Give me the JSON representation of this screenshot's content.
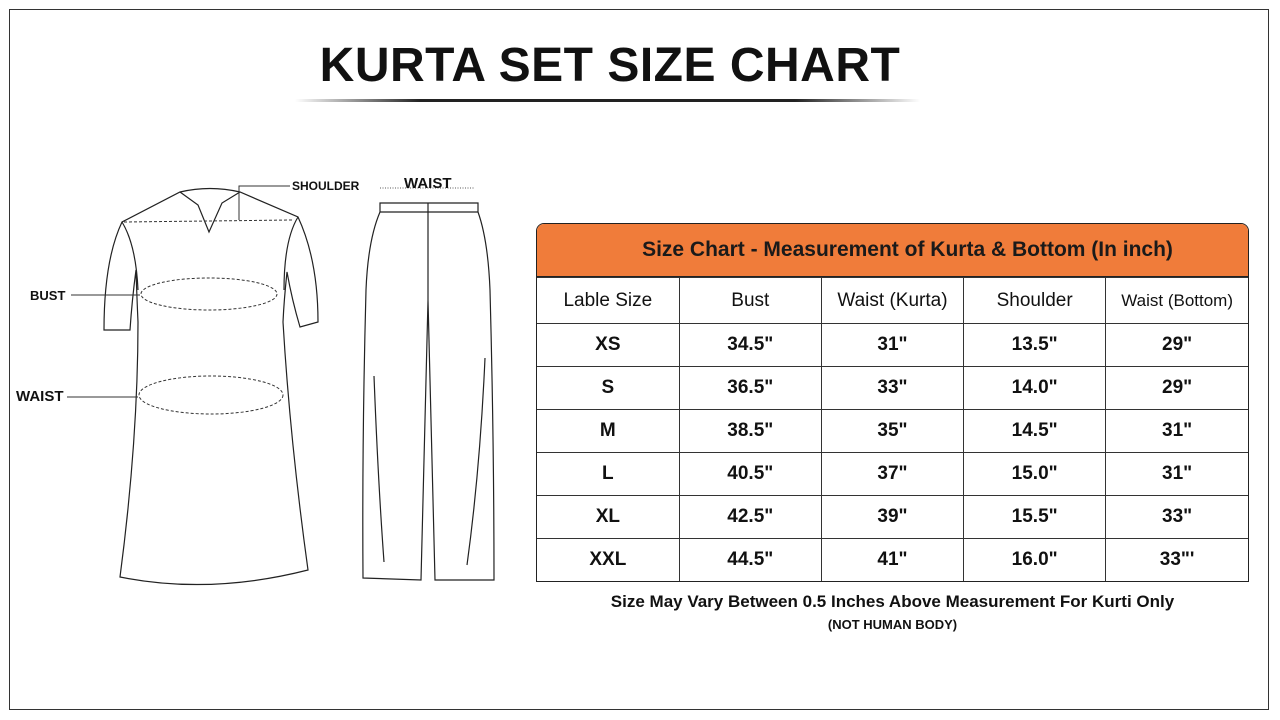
{
  "title": "KURTA SET SIZE CHART",
  "diagram": {
    "kurta_labels": {
      "shoulder": "SHOULDER",
      "bust": "BUST",
      "waist": "WAIST"
    },
    "bottom_labels": {
      "waist": "WAIST"
    }
  },
  "table": {
    "heading": "Size Chart - Measurement of  Kurta & Bottom  (In inch)",
    "header_color": "#f07c3a",
    "columns": [
      "Lable Size",
      "Bust",
      "Waist (Kurta)",
      "Shoulder",
      "Waist (Bottom)"
    ],
    "rows": [
      [
        "XS",
        "34.5\"",
        "31\"",
        "13.5\"",
        "29\""
      ],
      [
        "S",
        "36.5\"",
        "33\"",
        "14.0\"",
        "29\""
      ],
      [
        "M",
        "38.5\"",
        "35\"",
        "14.5\"",
        "31\""
      ],
      [
        "L",
        "40.5\"",
        "37\"",
        "15.0\"",
        "31\""
      ],
      [
        "XL",
        "42.5\"",
        "39\"",
        "15.5\"",
        "33\""
      ],
      [
        "XXL",
        "44.5\"",
        "41\"",
        "16.0\"",
        "33\"'"
      ]
    ]
  },
  "note": "Size May Vary Between 0.5 Inches Above Measurement For Kurti Only",
  "note_sub": "(NOT HUMAN BODY)"
}
